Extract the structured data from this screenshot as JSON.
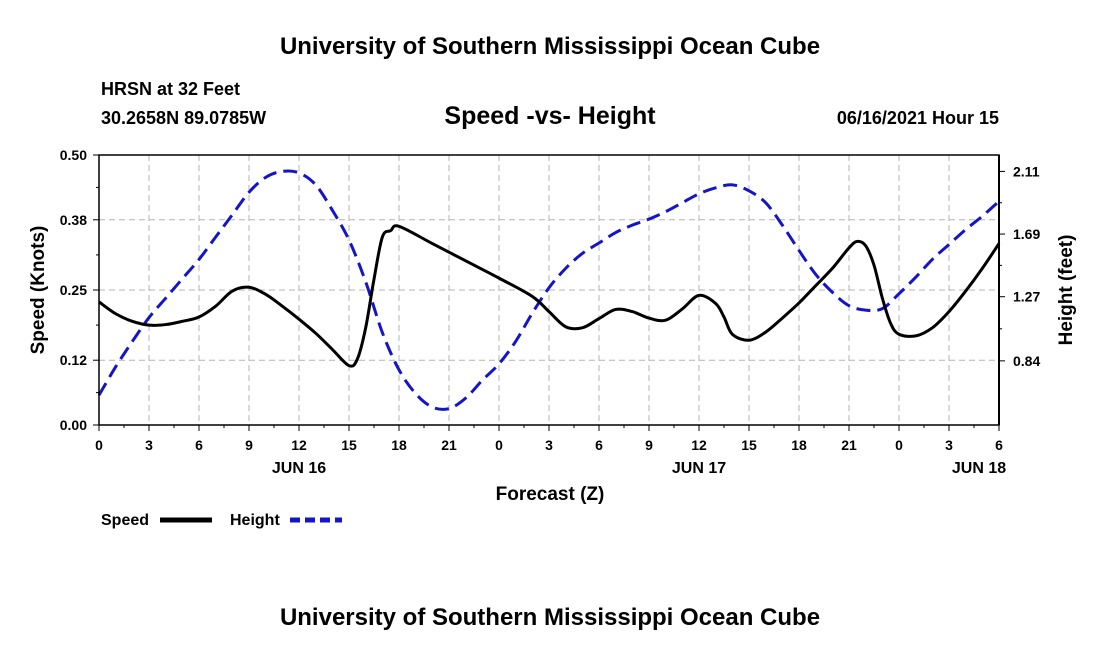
{
  "header": {
    "title_top": "University of Southern Mississippi Ocean Cube",
    "title_bottom": "University of Southern Mississippi Ocean Cube",
    "station": "HRSN at 32 Feet",
    "coords": "30.2658N  89.0785W",
    "plot_title": "Speed -vs- Height",
    "datetime": "06/16/2021 Hour 15"
  },
  "legend": {
    "speed_label": "Speed",
    "height_label": "Height"
  },
  "colors": {
    "speed": "#000000",
    "height": "#1414c8",
    "grid": "#b4b4b4"
  },
  "chart_data": {
    "type": "line",
    "title": "Speed -vs- Height",
    "xlabel": "Forecast (Z)",
    "ylabel": "Speed (Knots)",
    "y2label": "Height (feet)",
    "xlim": [
      0,
      54
    ],
    "ylim": [
      0,
      0.5
    ],
    "y2lim": [
      0.41,
      2.22
    ],
    "x_ticks": [
      0,
      3,
      6,
      9,
      12,
      15,
      18,
      21,
      24,
      27,
      30,
      33,
      36,
      39,
      42,
      45,
      48,
      51,
      54
    ],
    "x_tick_labels": [
      "0",
      "3",
      "6",
      "9",
      "12",
      "15",
      "18",
      "21",
      "0",
      "3",
      "6",
      "9",
      "12",
      "15",
      "18",
      "21",
      "0",
      "3",
      "6"
    ],
    "date_labels": [
      {
        "x": 12,
        "label": "JUN 16"
      },
      {
        "x": 36,
        "label": "JUN 17"
      },
      {
        "x": 52.8,
        "label": "JUN 18"
      }
    ],
    "y_ticks": [
      0.0,
      0.12,
      0.25,
      0.38,
      0.5
    ],
    "y_tick_labels": [
      "0.00",
      "0.12",
      "0.25",
      "0.38",
      "0.50"
    ],
    "y2_ticks": [
      0.84,
      1.27,
      1.69,
      2.11
    ],
    "y2_tick_labels": [
      "0.84",
      "1.27",
      "1.69",
      "2.11"
    ],
    "series": [
      {
        "name": "Speed",
        "axis": "left",
        "style": "solid",
        "x": [
          0,
          1,
          2,
          3,
          4,
          5,
          6,
          7,
          8,
          9,
          10,
          11,
          12,
          13,
          14,
          15,
          15.5,
          16,
          16.5,
          17,
          17.5,
          18,
          20,
          22,
          24,
          26,
          27,
          28,
          29,
          30,
          31,
          32,
          33,
          34,
          35,
          36,
          37,
          37.5,
          38,
          39,
          40,
          41,
          42,
          43,
          44,
          45,
          45.5,
          46,
          46.5,
          47,
          47.5,
          48,
          49,
          50,
          51,
          52,
          53,
          54
        ],
        "values": [
          0.228,
          0.206,
          0.192,
          0.185,
          0.186,
          0.192,
          0.2,
          0.22,
          0.248,
          0.255,
          0.242,
          0.22,
          0.196,
          0.17,
          0.14,
          0.11,
          0.122,
          0.18,
          0.27,
          0.348,
          0.36,
          0.368,
          0.336,
          0.304,
          0.272,
          0.238,
          0.21,
          0.182,
          0.18,
          0.197,
          0.214,
          0.21,
          0.198,
          0.194,
          0.215,
          0.24,
          0.225,
          0.2,
          0.168,
          0.157,
          0.172,
          0.198,
          0.226,
          0.258,
          0.29,
          0.328,
          0.34,
          0.332,
          0.296,
          0.235,
          0.188,
          0.168,
          0.165,
          0.18,
          0.21,
          0.248,
          0.29,
          0.336
        ]
      },
      {
        "name": "Height",
        "axis": "right",
        "style": "dashed",
        "x": [
          0,
          1,
          2,
          3,
          4,
          5,
          6,
          7,
          8,
          9,
          10,
          11,
          12,
          13,
          14,
          15,
          16,
          17,
          18,
          19,
          20,
          21,
          22,
          23,
          24,
          25,
          26,
          27,
          28,
          29,
          30,
          31,
          32,
          33,
          34,
          35,
          36,
          37,
          38,
          39,
          40,
          41,
          42,
          43,
          44,
          45,
          46,
          47,
          48,
          49,
          50,
          51,
          52,
          53,
          54
        ],
        "values": [
          0.61,
          0.8,
          0.97,
          1.13,
          1.26,
          1.39,
          1.52,
          1.67,
          1.82,
          1.97,
          2.07,
          2.11,
          2.1,
          2.02,
          1.85,
          1.65,
          1.37,
          1.03,
          0.78,
          0.62,
          0.53,
          0.52,
          0.59,
          0.71,
          0.82,
          0.97,
          1.16,
          1.33,
          1.46,
          1.56,
          1.63,
          1.7,
          1.75,
          1.79,
          1.84,
          1.9,
          1.96,
          2.0,
          2.02,
          1.98,
          1.9,
          1.75,
          1.58,
          1.42,
          1.3,
          1.21,
          1.18,
          1.19,
          1.29,
          1.4,
          1.52,
          1.62,
          1.72,
          1.81,
          1.91
        ]
      }
    ]
  }
}
